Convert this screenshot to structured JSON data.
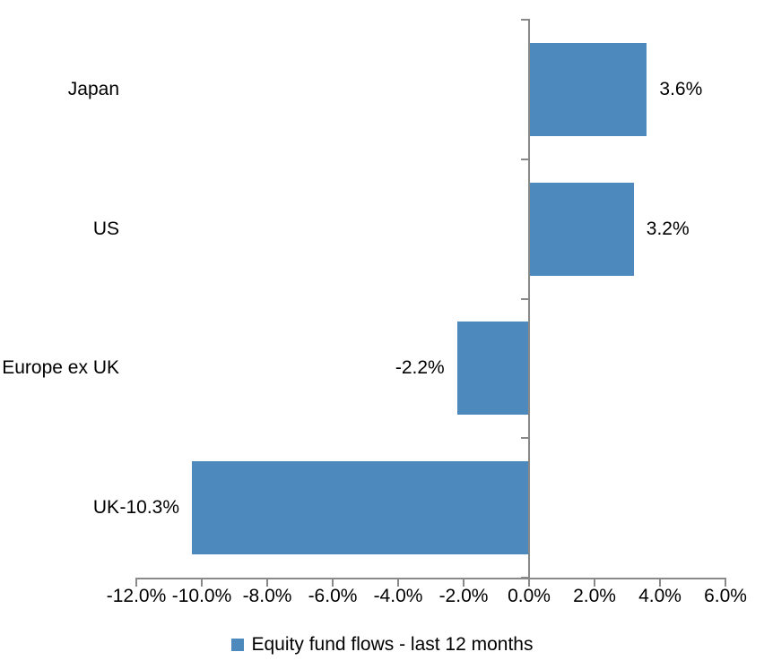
{
  "chart_data": {
    "type": "bar",
    "orientation": "horizontal",
    "title": "",
    "xlabel": "",
    "ylabel": "",
    "grid": false,
    "categories": [
      "Japan",
      "US",
      "Europe ex UK",
      "UK"
    ],
    "series": [
      {
        "name": "Equity fund flows - last 12 months",
        "values": [
          3.6,
          3.2,
          -2.2,
          -10.3
        ]
      }
    ],
    "value_labels": [
      "3.6%",
      "3.2%",
      "-2.2%",
      "-10.3%"
    ],
    "xlim": [
      -12,
      6
    ],
    "x_ticks": [
      -12,
      -10,
      -8,
      -6,
      -4,
      -2,
      0,
      2,
      4,
      6
    ],
    "x_tick_labels": [
      "-12.0%",
      "-10.0%",
      "-8.0%",
      "-6.0%",
      "-4.0%",
      "-2.0%",
      "0.0%",
      "2.0%",
      "4.0%",
      "6.0%"
    ],
    "legend": {
      "label": "Equity fund flows - last 12 months",
      "position": "bottom"
    },
    "colors": {
      "bar": "#4D89BD",
      "axis": "#898989",
      "text": "#000000",
      "background": "#FFFFFF"
    }
  }
}
